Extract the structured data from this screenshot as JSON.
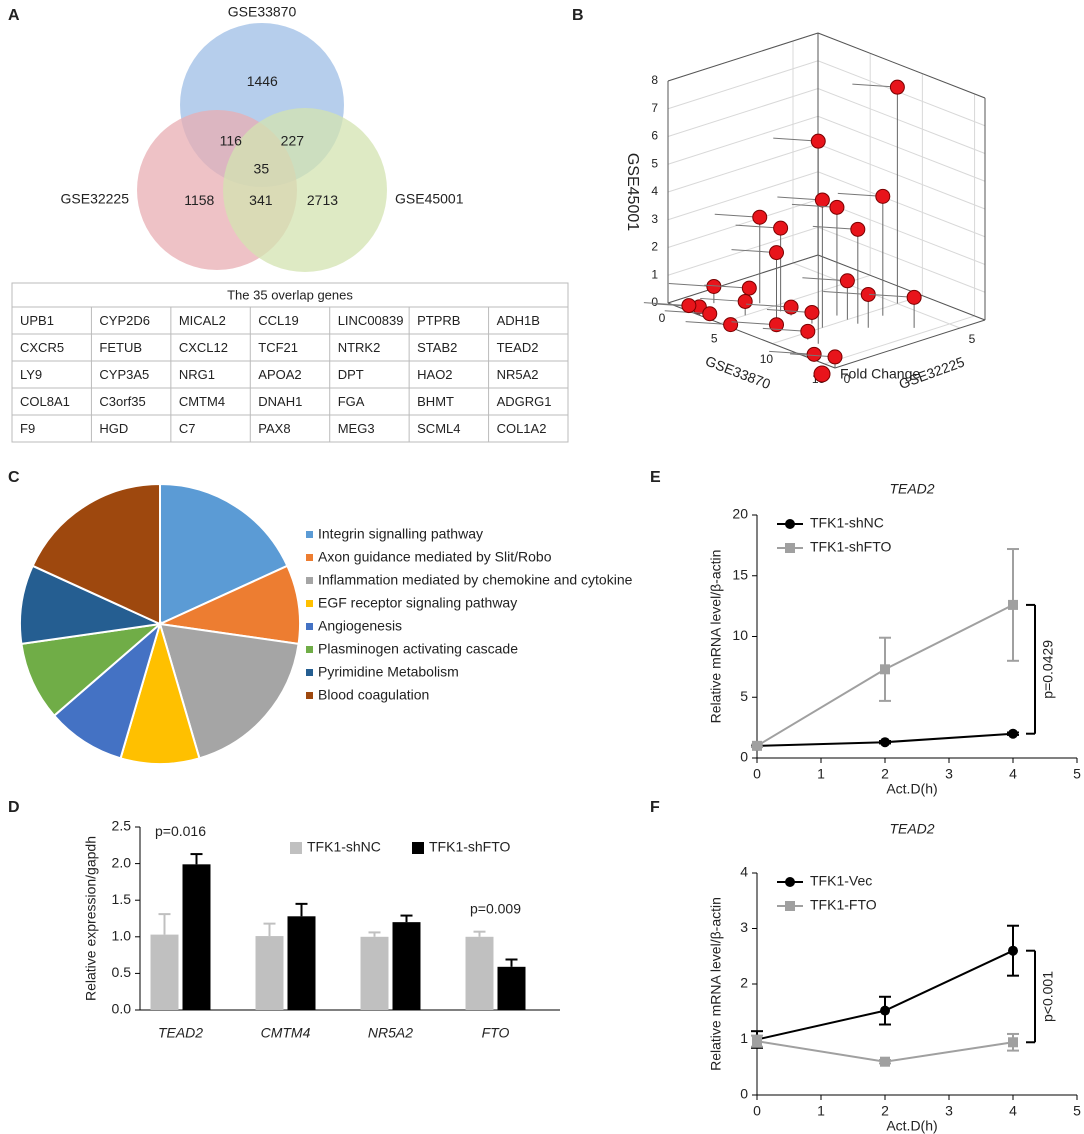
{
  "chart_data": [
    {
      "type": "venn",
      "panel": "A",
      "sets": [
        {
          "name": "GSE33870",
          "color": "#9dbde6"
        },
        {
          "name": "GSE32225",
          "color": "#e8aeb3"
        },
        {
          "name": "GSE45001",
          "color": "#d3e3b0"
        }
      ],
      "regions": [
        {
          "sets": [
            0
          ],
          "value": 1446
        },
        {
          "sets": [
            0,
            1
          ],
          "value": 116
        },
        {
          "sets": [
            0,
            2
          ],
          "value": 227
        },
        {
          "sets": [
            0,
            1,
            2
          ],
          "value": 35
        },
        {
          "sets": [
            1
          ],
          "value": 1158
        },
        {
          "sets": [
            1,
            2
          ],
          "value": 341
        },
        {
          "sets": [
            2
          ],
          "value": 2713
        }
      ]
    },
    {
      "type": "scatter3d",
      "panel": "B",
      "xlabel": "GSE33870",
      "ylabel": "GSE32225",
      "zlabel": "GSE45001",
      "xlim": [
        0,
        16
      ],
      "xticks": [
        0,
        5,
        10,
        15
      ],
      "ylim": [
        0,
        6
      ],
      "yticks": [
        0,
        5
      ],
      "zlim": [
        0,
        8
      ],
      "zticks": [
        0,
        1,
        2,
        3,
        4,
        5,
        6,
        7,
        8
      ],
      "series": [
        {
          "name": "Fold Change",
          "color": "#e8141b",
          "x": [
            12,
            10,
            10,
            11,
            9,
            11,
            4,
            6,
            8,
            10,
            12,
            14,
            2,
            3,
            3,
            5,
            7,
            9,
            4,
            6,
            8,
            11,
            14,
            16,
            2
          ],
          "y": [
            1,
            5,
            2,
            4,
            3,
            3,
            2,
            2,
            1,
            3,
            3,
            4,
            1,
            2,
            0,
            1,
            2,
            2,
            0,
            0,
            1,
            1,
            0,
            0,
            0
          ],
          "z": [
            7.3,
            7.8,
            4.6,
            4.3,
            3.9,
            3.4,
            3.1,
            3.0,
            2.7,
            1.4,
            1.2,
            1.1,
            0.6,
            0.4,
            0.3,
            0.5,
            0.3,
            0.4,
            0.2,
            0.1,
            0.1,
            0.3,
            0.2,
            0.4,
            0.2
          ]
        }
      ]
    },
    {
      "type": "pie",
      "panel": "C",
      "categories": [
        "Integrin signalling pathway",
        "Axon guidance mediated by Slit/Robo",
        "Inflammation mediated by chemokine and cytokine",
        "EGF receptor signaling pathway",
        "Angiogenesis",
        "Plasminogen activating cascade",
        "Pyrimidine Metabolism",
        "Blood coagulation"
      ],
      "values": [
        2,
        1,
        2,
        1,
        1,
        1,
        1,
        2
      ],
      "colors": [
        "#5b9bd5",
        "#ed7d31",
        "#a5a5a5",
        "#ffc000",
        "#4472c4",
        "#70ad47",
        "#255e91",
        "#9e480e"
      ]
    },
    {
      "type": "bar",
      "panel": "D",
      "ylabel": "Relative expression/gapdh",
      "categories": [
        "TEAD2",
        "CMTM4",
        "NR5A2",
        "FTO"
      ],
      "ylim": [
        0,
        2.5
      ],
      "yticks": [
        {
          "value": 0,
          "label": "0.0"
        },
        0.5,
        {
          "value": 1,
          "label": "1.0"
        },
        1.5,
        {
          "value": 2,
          "label": "2.0"
        },
        2.5
      ],
      "series": [
        {
          "name": "TFK1-shNC",
          "color": "#c0c0c0",
          "values": [
            1.03,
            1.01,
            1.0,
            1.0
          ],
          "errors": [
            0.28,
            0.17,
            0.06,
            0.07
          ]
        },
        {
          "name": "TFK1-shFTO",
          "color": "#000000",
          "values": [
            1.99,
            1.28,
            1.2,
            0.59
          ],
          "errors": [
            0.14,
            0.17,
            0.09,
            0.1
          ]
        }
      ],
      "annotations": [
        {
          "text": "p=0.016",
          "category": 0
        },
        {
          "text": "p=0.009",
          "category": 3
        }
      ]
    },
    {
      "type": "line",
      "panel": "E",
      "title": "TEAD2",
      "xlabel": "Act.D(h)",
      "ylabel": "Relative mRNA level/β-actin",
      "x": [
        0,
        2,
        4
      ],
      "xlim": [
        0,
        5
      ],
      "xticks": [
        0,
        1,
        2,
        3,
        4,
        5
      ],
      "ylim": [
        0,
        20
      ],
      "yticks": [
        0,
        5,
        10,
        15,
        20
      ],
      "series": [
        {
          "name": "TFK1-shNC",
          "color": "#000000",
          "marker": "circle",
          "values": [
            1,
            1.3,
            2
          ],
          "errors": [
            0.05,
            0.1,
            0.1
          ]
        },
        {
          "name": "TFK1-shFTO",
          "color": "#a0a0a0",
          "marker": "square",
          "values": [
            1,
            7.3,
            12.6
          ],
          "errors": [
            0.1,
            2.6,
            4.6
          ]
        }
      ],
      "annotation": "p=0.0429"
    },
    {
      "type": "line",
      "panel": "F",
      "title": "TEAD2",
      "xlabel": "Act.D(h)",
      "ylabel": "Relative mRNA level/β-actin",
      "x": [
        0,
        2,
        4
      ],
      "xlim": [
        0,
        5
      ],
      "xticks": [
        0,
        1,
        2,
        3,
        4,
        5
      ],
      "ylim": [
        0,
        4
      ],
      "yticks": [
        0,
        1,
        2,
        3,
        4
      ],
      "series": [
        {
          "name": "TFK1-Vec",
          "color": "#000000",
          "marker": "circle",
          "values": [
            1,
            1.52,
            2.6
          ],
          "errors": [
            0.15,
            0.25,
            0.45
          ]
        },
        {
          "name": "TFK1-FTO",
          "color": "#a0a0a0",
          "marker": "square",
          "values": [
            0.97,
            0.6,
            0.95
          ],
          "errors": [
            0.1,
            0.03,
            0.15
          ]
        }
      ],
      "annotation": "p<0.001"
    }
  ],
  "table": {
    "title": "The 35 overlap genes",
    "rows": [
      [
        "UPB1",
        "CYP2D6",
        "MICAL2",
        "CCL19",
        "LINC00839",
        "PTPRB",
        "ADH1B"
      ],
      [
        "CXCR5",
        "FETUB",
        "CXCL12",
        "TCF21",
        "NTRK2",
        "STAB2",
        "TEAD2"
      ],
      [
        "LY9",
        "CYP3A5",
        "NRG1",
        "APOA2",
        "DPT",
        "HAO2",
        "NR5A2"
      ],
      [
        "COL8A1",
        "C3orf35",
        "CMTM4",
        "DNAH1",
        "FGA",
        "BHMT",
        "ADGRG1"
      ],
      [
        "F9",
        "HGD",
        "C7",
        "PAX8",
        "MEG3",
        "SCML4",
        "COL1A2"
      ]
    ]
  }
}
